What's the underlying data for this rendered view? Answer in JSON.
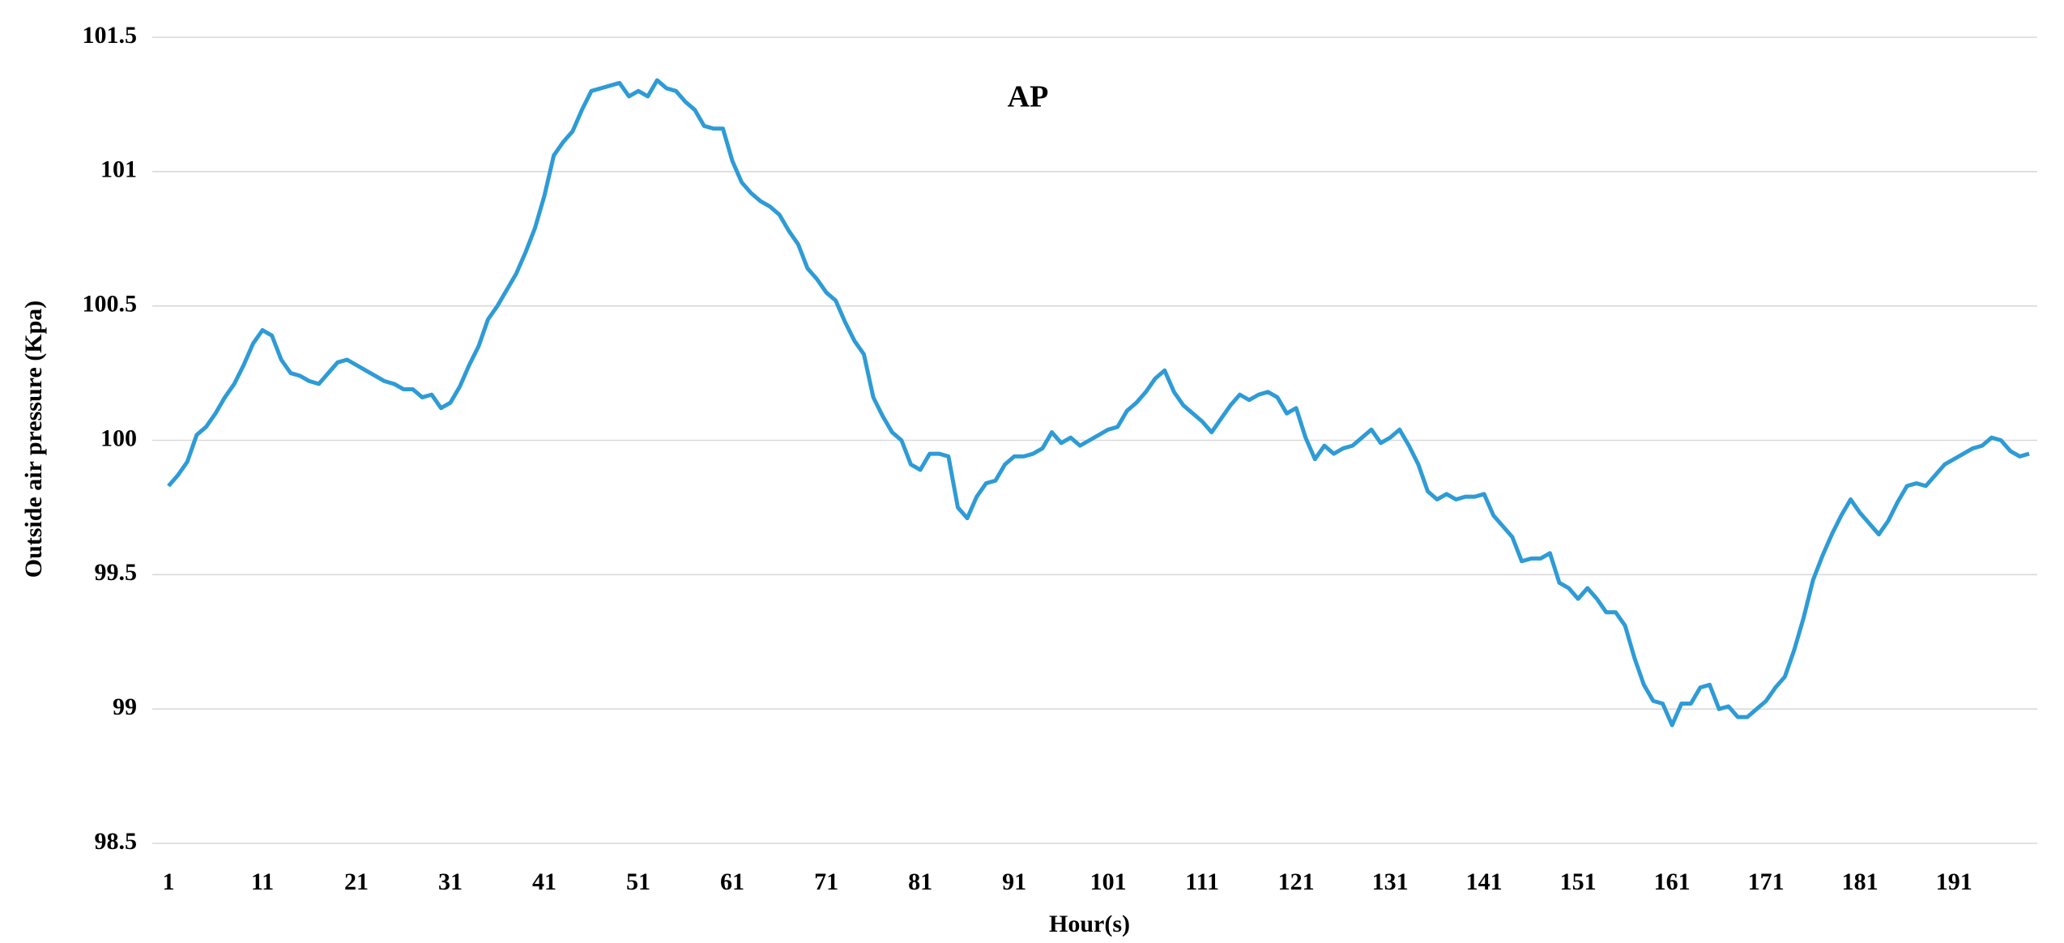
{
  "chart_data": {
    "type": "line",
    "title": "AP",
    "x_label": "Hour(s)",
    "y_label": "Outside air pressure (Kpa)",
    "x": [
      1,
      2,
      3,
      4,
      5,
      6,
      7,
      8,
      9,
      10,
      11,
      12,
      13,
      14,
      15,
      16,
      17,
      18,
      19,
      20,
      21,
      22,
      23,
      24,
      25,
      26,
      27,
      28,
      29,
      30,
      31,
      32,
      33,
      34,
      35,
      36,
      37,
      38,
      39,
      40,
      41,
      42,
      43,
      44,
      45,
      46,
      47,
      48,
      49,
      50,
      51,
      52,
      53,
      54,
      55,
      56,
      57,
      58,
      59,
      60,
      61,
      62,
      63,
      64,
      65,
      66,
      67,
      68,
      69,
      70,
      71,
      72,
      73,
      74,
      75,
      76,
      77,
      78,
      79,
      80,
      81,
      82,
      83,
      84,
      85,
      86,
      87,
      88,
      89,
      90,
      91,
      92,
      93,
      94,
      95,
      96,
      97,
      98,
      99,
      100,
      101,
      102,
      103,
      104,
      105,
      106,
      107,
      108,
      109,
      110,
      111,
      112,
      113,
      114,
      115,
      116,
      117,
      118,
      119,
      120,
      121,
      122,
      123,
      124,
      125,
      126,
      127,
      128,
      129,
      130,
      131,
      132,
      133,
      134,
      135,
      136,
      137,
      138,
      139,
      140,
      141,
      142,
      143,
      144,
      145,
      146,
      147,
      148,
      149,
      150,
      151,
      152,
      153,
      154,
      155,
      156,
      157,
      158,
      159,
      160,
      161,
      162,
      163,
      164,
      165,
      166,
      167,
      168,
      169,
      170,
      171,
      172,
      173,
      174,
      175,
      176,
      177,
      178,
      179,
      180,
      181,
      182,
      183,
      184,
      185,
      186,
      187,
      188,
      189,
      190,
      191,
      192,
      193,
      194,
      195,
      196,
      197,
      198,
      199
    ],
    "series": [
      {
        "name": "AP",
        "color": "#2e9bd6",
        "values": [
          99.83,
          99.87,
          99.92,
          100.02,
          100.05,
          100.1,
          100.16,
          100.21,
          100.28,
          100.36,
          100.41,
          100.39,
          100.3,
          100.25,
          100.24,
          100.22,
          100.21,
          100.25,
          100.29,
          100.3,
          100.28,
          100.26,
          100.24,
          100.22,
          100.21,
          100.19,
          100.19,
          100.16,
          100.17,
          100.12,
          100.14,
          100.2,
          100.28,
          100.35,
          100.45,
          100.5,
          100.56,
          100.62,
          100.7,
          100.79,
          100.91,
          101.06,
          101.11,
          101.15,
          101.23,
          101.3,
          101.31,
          101.32,
          101.33,
          101.28,
          101.3,
          101.28,
          101.34,
          101.31,
          101.3,
          101.26,
          101.23,
          101.17,
          101.16,
          101.16,
          101.04,
          100.96,
          100.92,
          100.89,
          100.87,
          100.84,
          100.78,
          100.73,
          100.64,
          100.6,
          100.55,
          100.52,
          100.44,
          100.37,
          100.32,
          100.16,
          100.09,
          100.03,
          100.0,
          99.91,
          99.89,
          99.95,
          99.95,
          99.94,
          99.75,
          99.71,
          99.79,
          99.84,
          99.85,
          99.91,
          99.94,
          99.94,
          99.95,
          99.97,
          100.03,
          99.99,
          100.01,
          99.98,
          100.0,
          100.02,
          100.04,
          100.05,
          100.11,
          100.14,
          100.18,
          100.23,
          100.26,
          100.18,
          100.13,
          100.1,
          100.07,
          100.03,
          100.08,
          100.13,
          100.17,
          100.15,
          100.17,
          100.18,
          100.16,
          100.1,
          100.12,
          100.01,
          99.93,
          99.98,
          99.95,
          99.97,
          99.98,
          100.01,
          100.04,
          99.99,
          100.01,
          100.04,
          99.98,
          99.91,
          99.81,
          99.78,
          99.8,
          99.78,
          99.79,
          99.79,
          99.8,
          99.72,
          99.68,
          99.64,
          99.55,
          99.56,
          99.56,
          99.58,
          99.47,
          99.45,
          99.41,
          99.45,
          99.41,
          99.36,
          99.36,
          99.31,
          99.19,
          99.09,
          99.03,
          99.02,
          98.94,
          99.02,
          99.02,
          99.08,
          99.09,
          99.0,
          99.01,
          98.97,
          98.97,
          99.0,
          99.03,
          99.08,
          99.12,
          99.22,
          99.34,
          99.48,
          99.57,
          99.65,
          99.72,
          99.78,
          99.73,
          99.69,
          99.65,
          99.7,
          99.77,
          99.83,
          99.84,
          99.83,
          99.87,
          99.91,
          99.93,
          99.95,
          99.97,
          99.98,
          100.01,
          100.0,
          99.96,
          99.94,
          99.95
        ]
      }
    ],
    "xlim": [
      1,
      199
    ],
    "xticks": [
      1,
      11,
      21,
      31,
      41,
      51,
      61,
      71,
      81,
      91,
      101,
      111,
      121,
      131,
      141,
      151,
      161,
      171,
      181,
      191
    ],
    "ylim": [
      98.5,
      101.5
    ],
    "yticks": [
      98.5,
      99,
      99.5,
      100,
      100.5,
      101,
      101.5
    ],
    "grid": true
  }
}
